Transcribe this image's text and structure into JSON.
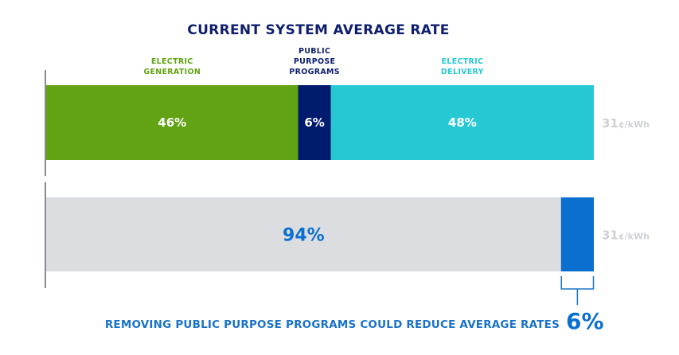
{
  "chart_data": {
    "type": "bar",
    "orientation": "horizontal",
    "stacked": true,
    "title": "CURRENT SYSTEM AVERAGE RATE",
    "unit": "%",
    "xlim": [
      0,
      100
    ],
    "bars": [
      {
        "name": "current",
        "total_label": "31",
        "total_unit": "¢/kWh",
        "segments": [
          {
            "label_lines": [
              "ELECTRIC",
              "GENERATION"
            ],
            "value": 46,
            "value_label": "46%",
            "color": "#62a314",
            "label_color": "#62a314",
            "value_color": "#ffffff"
          },
          {
            "label_lines": [
              "PUBLIC",
              "PURPOSE",
              "PROGRAMS"
            ],
            "value": 6,
            "value_label": "6%",
            "color": "#001a6e",
            "label_color": "#0f1f6e",
            "value_color": "#ffffff"
          },
          {
            "label_lines": [
              "ELECTRIC",
              "DELIVERY"
            ],
            "value": 48,
            "value_label": "48%",
            "color": "#26c9d3",
            "label_color": "#26c9d3",
            "value_color": "#ffffff"
          }
        ]
      },
      {
        "name": "without-public-purpose",
        "total_label": "31",
        "total_unit": "¢/kWh",
        "segments": [
          {
            "label_lines": [],
            "value": 94,
            "value_label": "94%",
            "color": "#dcdde0",
            "value_color": "#0b6fd0"
          },
          {
            "label_lines": [],
            "value": 6,
            "value_label": "",
            "color": "#0b6fd0",
            "value_color": "#ffffff"
          }
        ]
      }
    ],
    "annotation": {
      "text": "REMOVING PUBLIC PURPOSE PROGRAMS COULD REDUCE AVERAGE RATES",
      "value": "6%",
      "color": "#1a73c8",
      "value_color": "#0b6fd0"
    },
    "axis_color": "#8c8c8c",
    "title_color": "#0f1f6e"
  }
}
